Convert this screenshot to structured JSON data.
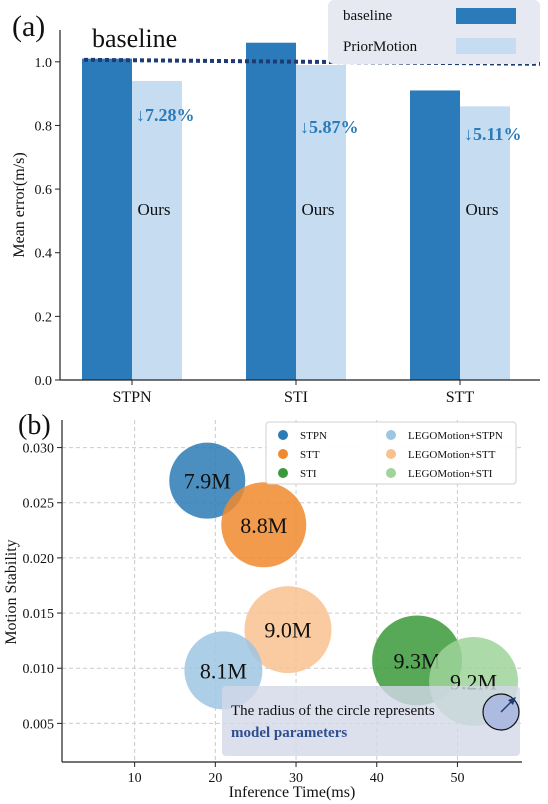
{
  "chart_data": [
    {
      "type": "bar",
      "panel_label": "(a)",
      "ylabel": "Mean error(m/s)",
      "ylim": [
        0,
        1.1
      ],
      "yticks": [
        "0.0",
        "0.2",
        "0.4",
        "0.6",
        "0.8",
        "1.0"
      ],
      "categories": [
        "STPN",
        "STI",
        "STT"
      ],
      "series": [
        {
          "name": "baseline",
          "values": [
            1.01,
            1.06,
            0.91
          ],
          "color": "#2b7bba"
        },
        {
          "name": "PriorMotion",
          "values": [
            0.94,
            0.99,
            0.86
          ],
          "color": "#c6dcf0"
        }
      ],
      "baseline_line": {
        "label": "baseline",
        "value": 1.0,
        "color": "#1f3b73"
      },
      "bar_text": [
        "Ours",
        "Ours",
        "Ours"
      ],
      "reductions": [
        "↓7.28%",
        "↓5.87%",
        "↓5.11%"
      ],
      "reduction_color": "#2b7bba",
      "legend_position": "top-right"
    },
    {
      "type": "scatter",
      "panel_label": "(b)",
      "xlabel": "Inference Time(ms)",
      "ylabel": "Motion Stability",
      "xlim": [
        1,
        58
      ],
      "ylim": [
        0.0015,
        0.0325
      ],
      "xticks": [
        "10",
        "20",
        "30",
        "40",
        "50"
      ],
      "yticks": [
        "0.005",
        "0.010",
        "0.015",
        "0.020",
        "0.025",
        "0.030"
      ],
      "grid": true,
      "legend_position": "top-right",
      "legend": [
        {
          "name": "STPN",
          "color": "#2c7bb6"
        },
        {
          "name": "STT",
          "color": "#f08a2e"
        },
        {
          "name": "STI",
          "color": "#3a9a3a"
        },
        {
          "name": "LEGOMotion+STPN",
          "color": "#9ec5e2"
        },
        {
          "name": "LEGOMotion+STT",
          "color": "#f9c18f"
        },
        {
          "name": "LEGOMotion+STI",
          "color": "#9fd49a"
        }
      ],
      "points": [
        {
          "series": "STPN",
          "x": 19,
          "y": 0.027,
          "params": "7.9M",
          "size": 7.9,
          "color": "#2c7bb6"
        },
        {
          "series": "STT",
          "x": 26,
          "y": 0.023,
          "params": "8.8M",
          "size": 8.8,
          "color": "#f08a2e"
        },
        {
          "series": "LEGOMotion+STT",
          "x": 29,
          "y": 0.0135,
          "params": "9.0M",
          "size": 9.0,
          "color": "#f9c18f"
        },
        {
          "series": "LEGOMotion+STPN",
          "x": 21,
          "y": 0.0098,
          "params": "8.1M",
          "size": 8.1,
          "color": "#9ec5e2"
        },
        {
          "series": "STI",
          "x": 45,
          "y": 0.0107,
          "params": "9.3M",
          "size": 9.3,
          "color": "#3a9a3a"
        },
        {
          "series": "LEGOMotion+STI",
          "x": 52,
          "y": 0.0088,
          "params": "9.2M",
          "size": 9.2,
          "color": "#9fd49a"
        }
      ],
      "annotation": {
        "text": "The radius of the circle represents",
        "emphasis": "model parameters",
        "emphasis_color": "#2f4f8f"
      }
    }
  ]
}
